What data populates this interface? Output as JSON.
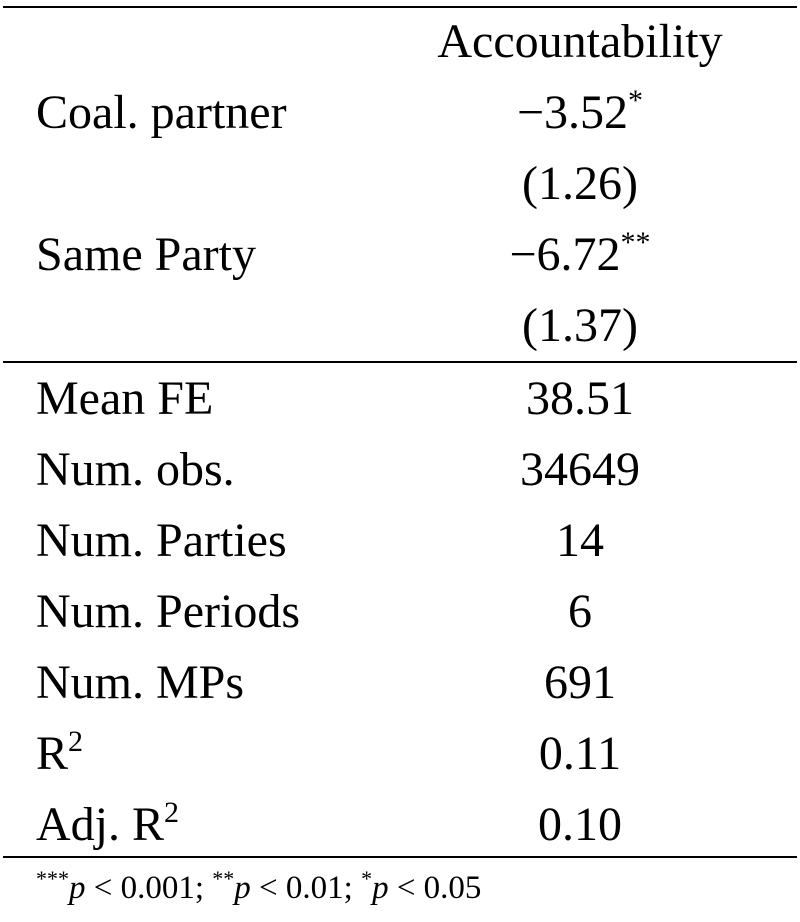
{
  "header": {
    "column_title": "Accountability"
  },
  "coefficients": [
    {
      "label": "Coal. partner",
      "estimate": "−3.52",
      "stars": "*",
      "se": "(1.26)"
    },
    {
      "label": "Same Party",
      "estimate": "−6.72",
      "stars": "**",
      "se": "(1.37)"
    }
  ],
  "stats": [
    {
      "label": "Mean FE",
      "value": "38.51"
    },
    {
      "label": "Num. obs.",
      "value": "34649"
    },
    {
      "label": "Num. Parties",
      "value": "14"
    },
    {
      "label": "Num. Periods",
      "value": "6"
    },
    {
      "label": "Num. MPs",
      "value": "691"
    },
    {
      "label": "R",
      "sup": "2",
      "value": "0.11"
    },
    {
      "label": "Adj. R",
      "sup": "2",
      "value": "0.10"
    }
  ],
  "footnote": {
    "stars3": "***",
    "p3": "p",
    "thr3": " < 0.001; ",
    "stars2": "**",
    "p2": "p",
    "thr2": " < 0.01; ",
    "stars1": "*",
    "p1": "p",
    "thr1": " < 0.05"
  }
}
